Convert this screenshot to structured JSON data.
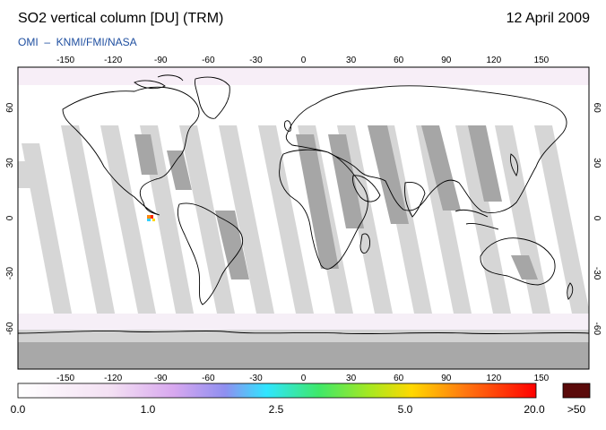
{
  "header": {
    "title": "SO2 vertical column [DU] (TRM)",
    "date": "12 April 2009",
    "credits": "OMI  –  KNMI/FMI/NASA"
  },
  "map": {
    "lon_ticks": [
      "-150",
      "-120",
      "-90",
      "-60",
      "-30",
      "0",
      "30",
      "60",
      "90",
      "120",
      "150"
    ],
    "lat_ticks": [
      "60",
      "30",
      "0",
      "-30",
      "-60"
    ],
    "ocean_color": "#ffffff",
    "swath_gap_color": "#d3d3d3",
    "land_gap_color": "#a9a9a9",
    "coastline_color": "#000000"
  },
  "colorbar": {
    "labels": [
      "0.0",
      "1.0",
      "2.5",
      "5.0",
      "20.0",
      ">50"
    ],
    "colors": [
      "#ffffff",
      "#f0d8f0",
      "#9a8ff0",
      "#33e0ff",
      "#33ee55",
      "#ffe000",
      "#ff7a10",
      "#ff0000",
      "#5a0000"
    ],
    "overflow_color": "#5a0a0a"
  }
}
